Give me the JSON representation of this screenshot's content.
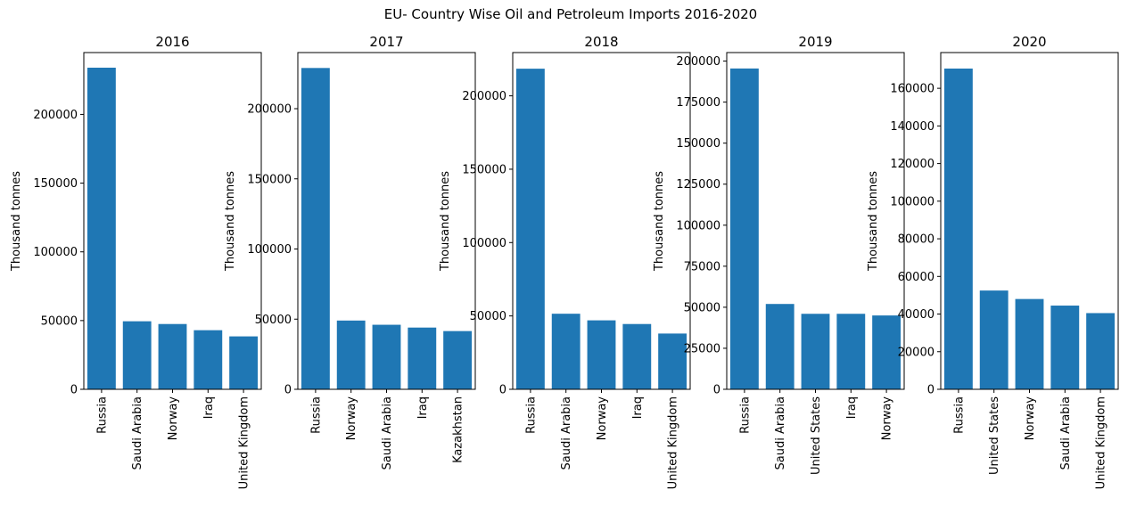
{
  "suptitle": "EU- Country Wise Oil and Petroleum Imports 2016-2020",
  "colors": {
    "bar": "#1f77b4",
    "axis": "#000000",
    "background": "#ffffff"
  },
  "chart_data": [
    {
      "type": "bar",
      "title": "2016",
      "ylabel": "Thousand tonnes",
      "categories": [
        "Russia",
        "Saudi Arabia",
        "Norway",
        "Iraq",
        "United Kingdom"
      ],
      "values": [
        234000,
        49500,
        47500,
        43000,
        38500
      ],
      "ylim": [
        0,
        245000
      ],
      "yticks": [
        0,
        50000,
        100000,
        150000,
        200000
      ],
      "grid": false
    },
    {
      "type": "bar",
      "title": "2017",
      "ylabel": "Thousand tonnes",
      "categories": [
        "Russia",
        "Norway",
        "Saudi Arabia",
        "Iraq",
        "Kazakhstan"
      ],
      "values": [
        229000,
        49000,
        46000,
        44000,
        41500
      ],
      "ylim": [
        0,
        240000
      ],
      "yticks": [
        0,
        50000,
        100000,
        150000,
        200000
      ],
      "grid": false
    },
    {
      "type": "bar",
      "title": "2018",
      "ylabel": "Thousand tonnes",
      "categories": [
        "Russia",
        "Saudi Arabia",
        "Norway",
        "Iraq",
        "United Kingdom"
      ],
      "values": [
        218500,
        51500,
        47000,
        44500,
        38000
      ],
      "ylim": [
        0,
        229500
      ],
      "yticks": [
        0,
        50000,
        100000,
        150000,
        200000
      ],
      "grid": false
    },
    {
      "type": "bar",
      "title": "2019",
      "ylabel": "Thousand tonnes",
      "categories": [
        "Russia",
        "Saudi Arabia",
        "United States",
        "Iraq",
        "Norway"
      ],
      "values": [
        195500,
        52000,
        46000,
        46000,
        45000
      ],
      "ylim": [
        0,
        205200
      ],
      "yticks": [
        0,
        25000,
        50000,
        75000,
        100000,
        125000,
        150000,
        175000,
        200000
      ],
      "grid": false
    },
    {
      "type": "bar",
      "title": "2020",
      "ylabel": "Thousand tonnes",
      "categories": [
        "Russia",
        "United States",
        "Norway",
        "Saudi Arabia",
        "United Kingdom"
      ],
      "values": [
        170500,
        52500,
        48000,
        44500,
        40500
      ],
      "ylim": [
        0,
        179000
      ],
      "yticks": [
        0,
        20000,
        40000,
        60000,
        80000,
        100000,
        120000,
        140000,
        160000
      ],
      "grid": false
    }
  ]
}
